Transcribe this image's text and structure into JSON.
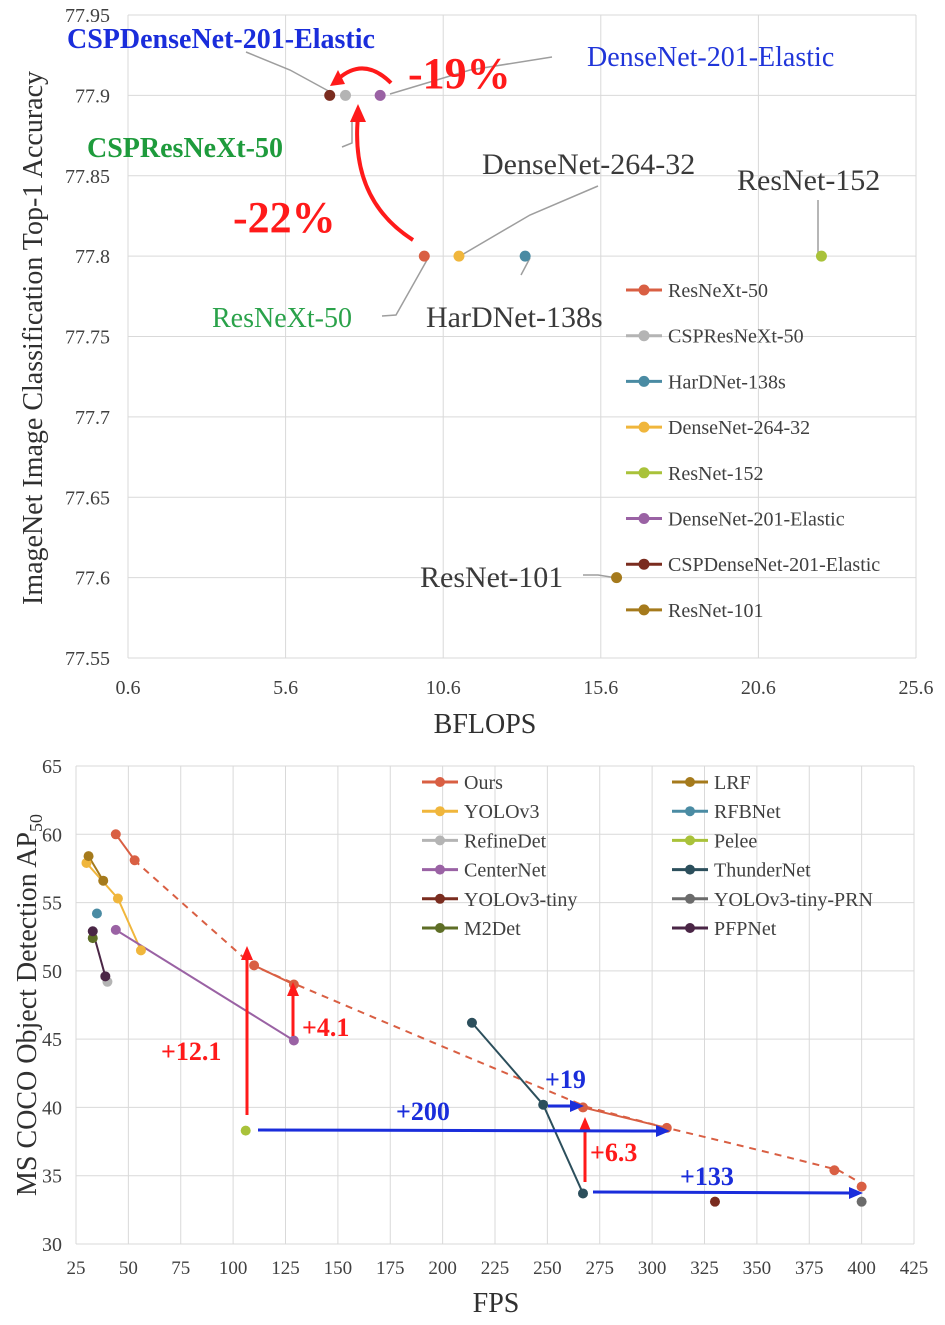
{
  "chart_data": [
    {
      "type": "scatter",
      "title": "",
      "xlabel": "BFLOPS",
      "ylabel": "ImageNet Image Classification Top-1 Accuracy",
      "xlim": [
        0.6,
        25.6
      ],
      "ylim": [
        77.55,
        77.95
      ],
      "x_ticks": [
        "0.6",
        "5.6",
        "10.6",
        "15.6",
        "20.6",
        "25.6"
      ],
      "y_ticks": [
        "77.55",
        "77.6",
        "77.65",
        "77.7",
        "77.75",
        "77.8",
        "77.85",
        "77.9",
        "77.95"
      ],
      "grid": true,
      "legend_position": "right",
      "series": [
        {
          "name": "ResNeXt-50",
          "color": "#d95f43",
          "x": 10.0,
          "y": 77.8
        },
        {
          "name": "CSPResNeXt-50",
          "color": "#b4b4b4",
          "x": 7.5,
          "y": 77.9
        },
        {
          "name": "HarDNet-138s",
          "color": "#4a8ba3",
          "x": 13.2,
          "y": 77.8
        },
        {
          "name": "DenseNet-264-32",
          "color": "#f0b63c",
          "x": 11.1,
          "y": 77.8
        },
        {
          "name": "ResNet-152",
          "color": "#a9c23a",
          "x": 22.6,
          "y": 77.8
        },
        {
          "name": "DenseNet-201-Elastic",
          "color": "#9a62a4",
          "x": 8.6,
          "y": 77.9
        },
        {
          "name": "CSPDenseNet-201-Elastic",
          "color": "#7a2c1f",
          "x": 7.0,
          "y": 77.9
        },
        {
          "name": "ResNet-101",
          "color": "#a57a1c",
          "x": 16.1,
          "y": 77.6
        }
      ],
      "annotations": {
        "csp_densenet": "CSPDenseNet-201-Elastic",
        "densenet": "DenseNet-201-Elastic",
        "minus19": "-19%",
        "csp_resnext": "CSPResNeXt-50",
        "densenet264": "DenseNet-264-32",
        "resnet152": "ResNet-152",
        "minus22": "-22%",
        "resnext": "ResNeXt-50",
        "hardnet": "HarDNet-138s",
        "resnet101": "ResNet-101"
      }
    },
    {
      "type": "line",
      "title": "",
      "xlabel": "FPS",
      "ylabel": "MS COCO Object Detection AP",
      "ylabel_sub": "50",
      "xlim": [
        25,
        425
      ],
      "ylim": [
        30,
        65
      ],
      "x_ticks": [
        "25",
        "50",
        "75",
        "100",
        "125",
        "150",
        "175",
        "200",
        "225",
        "250",
        "275",
        "300",
        "325",
        "350",
        "375",
        "400",
        "425"
      ],
      "y_ticks": [
        "30",
        "35",
        "40",
        "45",
        "50",
        "55",
        "60",
        "65"
      ],
      "grid": true,
      "legend_position": "top-right",
      "series": [
        {
          "name": "Ours",
          "color": "#d95f43",
          "x": [
            44,
            53,
            110,
            129,
            267,
            307,
            387,
            400
          ],
          "y": [
            60,
            58.1,
            50.4,
            49.0,
            40.0,
            38.5,
            35.4,
            34.2
          ]
        },
        {
          "name": "YOLOv3",
          "color": "#f0b63c",
          "x": [
            30,
            45,
            56
          ],
          "y": [
            57.9,
            55.3,
            51.5
          ]
        },
        {
          "name": "RefineDet",
          "color": "#b4b4b4",
          "x": [
            40
          ],
          "y": [
            49.2
          ]
        },
        {
          "name": "CenterNet",
          "color": "#9a62a4",
          "x": [
            44,
            129
          ],
          "y": [
            53.0,
            44.9
          ]
        },
        {
          "name": "YOLOv3-tiny",
          "color": "#7a2c1f",
          "x": [
            330
          ],
          "y": [
            33.1
          ]
        },
        {
          "name": "M2Det",
          "color": "#5e6e26",
          "x": [
            33
          ],
          "y": [
            52.4
          ]
        },
        {
          "name": "LRF",
          "color": "#a57a1c",
          "x": [
            31,
            38
          ],
          "y": [
            58.4,
            56.6
          ]
        },
        {
          "name": "RFBNet",
          "color": "#4a8ba3",
          "x": [
            35
          ],
          "y": [
            54.2
          ]
        },
        {
          "name": "Pelee",
          "color": "#a9c23a",
          "x": [
            106
          ],
          "y": [
            38.3
          ]
        },
        {
          "name": "ThunderNet",
          "color": "#2c4f5c",
          "x": [
            214,
            248,
            267
          ],
          "y": [
            46.2,
            40.2,
            33.7
          ]
        },
        {
          "name": "YOLOv3-tiny-PRN",
          "color": "#6b6b6b",
          "x": [
            400
          ],
          "y": [
            33.1
          ]
        },
        {
          "name": "PFPNet",
          "color": "#4a2646",
          "x": [
            33,
            39
          ],
          "y": [
            52.9,
            49.6
          ]
        }
      ],
      "annotations": {
        "plus12": "+12.1",
        "plus4": "+4.1",
        "plus200": "+200",
        "plus19": "+19",
        "plus63": "+6.3",
        "plus133": "+133"
      }
    }
  ]
}
